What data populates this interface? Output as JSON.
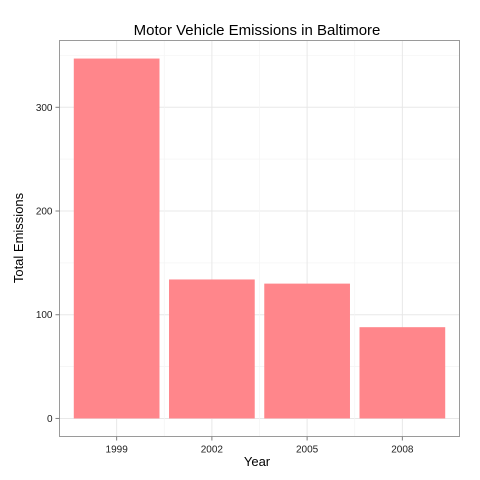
{
  "chart_data": {
    "type": "bar",
    "title": "Motor Vehicle Emissions in Baltimore",
    "xlabel": "Year",
    "ylabel": "Total Emissions",
    "categories": [
      "1999",
      "2002",
      "2005",
      "2008"
    ],
    "values": [
      347,
      134,
      130,
      88
    ],
    "ylim": [
      -17.4,
      364.4
    ],
    "yticks": [
      0,
      100,
      200,
      300
    ],
    "ytick_labels": [
      "0",
      "100",
      "200",
      "300"
    ],
    "bar_color": "#ff868b",
    "grid": true,
    "legend": "none"
  }
}
